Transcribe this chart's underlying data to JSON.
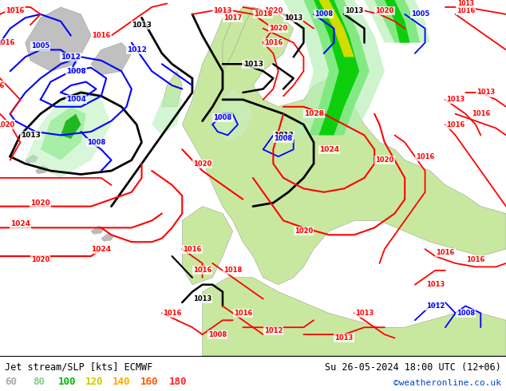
{
  "title_left": "Jet stream/SLP [kts] ECMWF",
  "title_right": "Su 26-05-2024 18:00 UTC (12+06)",
  "credit": "©weatheronline.co.uk",
  "legend_values": [
    "60",
    "80",
    "100",
    "120",
    "140",
    "160",
    "180"
  ],
  "legend_colors": [
    "#aaaaaa",
    "#88cc88",
    "#00bb00",
    "#cccc00",
    "#ffaa00",
    "#ff5500",
    "#ff2222"
  ],
  "land_color": "#c8e8a0",
  "ocean_color": "#e8e8e8",
  "deep_ocean_color": "#d0d8e8",
  "jet_colors": [
    "#b8f0b8",
    "#78e878",
    "#00cc00",
    "#dddd00",
    "#ffaa00",
    "#ff4400"
  ],
  "fig_bg": "#ffffff",
  "bottom_bg": "#ffffff",
  "credit_color": "#0044cc"
}
